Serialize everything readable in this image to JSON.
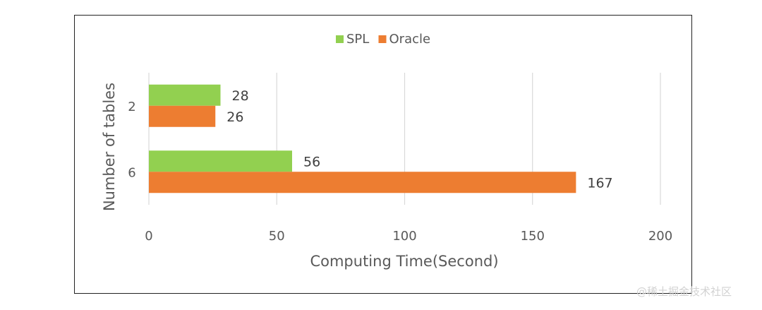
{
  "chart_data": {
    "type": "bar",
    "orientation": "horizontal",
    "categories": [
      "2",
      "6"
    ],
    "series": [
      {
        "name": "SPL",
        "values": [
          28,
          56
        ],
        "color": "#92d050"
      },
      {
        "name": "Oracle",
        "values": [
          26,
          167
        ],
        "color": "#ed7d31"
      }
    ],
    "xlabel": "Computing Time(Second)",
    "ylabel": "Number of tables",
    "xlim": [
      0,
      200
    ],
    "xticks": [
      "0",
      "50",
      "100",
      "150",
      "200"
    ],
    "grid": true,
    "legend": "top-center",
    "data_labels": true
  },
  "watermark": "@稀土掘金技术社区"
}
